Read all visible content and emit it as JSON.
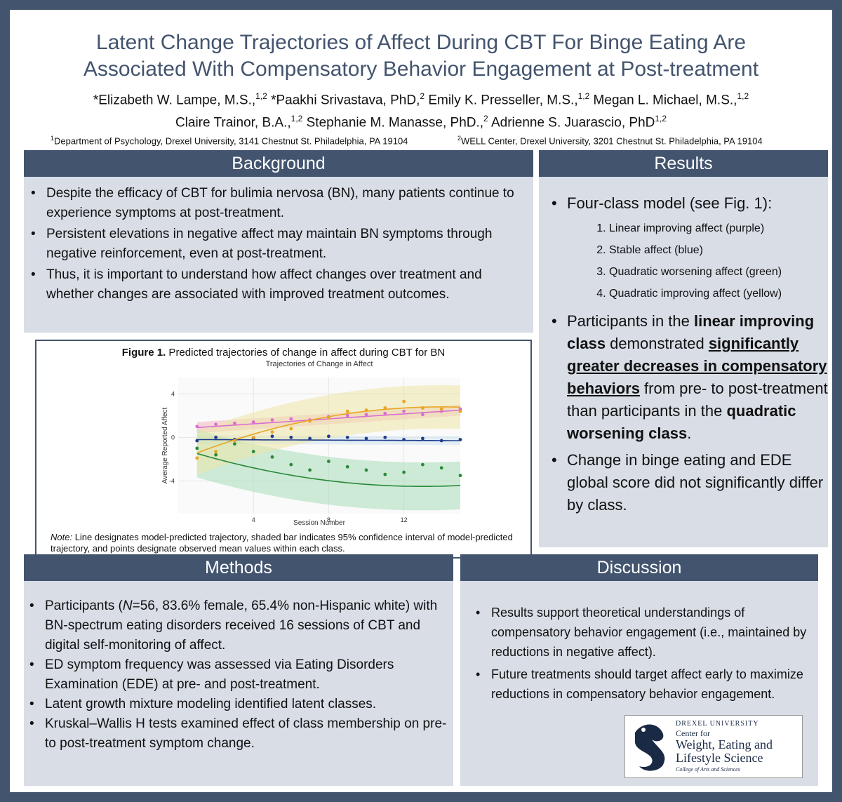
{
  "title": {
    "line1": "Latent Change Trajectories of Affect During CBT For Binge Eating Are",
    "line2": "Associated With Compensatory Behavior Engagement at Post-treatment"
  },
  "authors": {
    "line1": "*Elizabeth W. Lampe, M.S.,1,2 *Paakhi Srivastava, PhD,2 Emily K. Presseller, M.S.,1,2 Megan L. Michael, M.S.,1,2",
    "line2": "Claire Trainor, B.A.,1,2 Stephanie M. Manasse, PhD.,2 Adrienne S. Juarascio, PhD1,2"
  },
  "affiliations": {
    "a1": "Department of Psychology, Drexel University, 3141 Chestnut St. Philadelphia, PA 19104",
    "a2": "WELL Center, Drexel University, 3201 Chestnut St. Philadelphia, PA 19104"
  },
  "background": {
    "heading": "Background",
    "items": [
      "Despite the efficacy of CBT for bulimia nervosa (BN), many patients continue to experience symptoms at post-treatment.",
      "Persistent elevations in negative affect may maintain BN symptoms through negative reinforcement, even at post-treatment.",
      "Thus, it is important to understand how affect changes over treatment and whether changes are associated with improved treatment outcomes."
    ]
  },
  "results": {
    "heading": "Results",
    "intro": "Four-class model (see Fig. 1):",
    "classes": [
      "Linear improving affect (purple)",
      "Stable affect (blue)",
      "Quadratic worsening affect (green)",
      "Quadratic improving affect (yellow)"
    ],
    "p2_a": "Participants in the ",
    "p2_b": "linear improving class",
    "p2_c": " demonstrated ",
    "p2_d": "significantly",
    "p2_e": "greater decreases in compensatory behaviors",
    "p2_f": " from pre- to post-treatment than participants in the ",
    "p2_g": "quadratic worsening class",
    "p2_h": ".",
    "p3": "Change in binge eating and EDE global score did not significantly differ by class."
  },
  "figure": {
    "caption_bold": "Figure 1.",
    "caption": " Predicted trajectories of change in affect during CBT for BN",
    "note_label": "Note:",
    "note": " Line designates model-predicted trajectory, shaded bar indicates 95% confidence interval of model-predicted trajectory, and points designate observed mean values within each class."
  },
  "methods": {
    "heading": "Methods",
    "item1_a": "Participants (",
    "item1_n": "N",
    "item1_b": "=56, 83.6% female, 65.4% non-Hispanic white) with BN-spectrum eating disorders received 16 sessions of CBT and digital self-monitoring of affect.",
    "items": [
      "ED symptom frequency was assessed via Eating Disorders Examination (EDE) at pre- and post-treatment.",
      "Latent growth mixture modeling identified latent classes.",
      "Kruskal–Wallis H tests examined effect of class membership on pre- to post-treatment symptom change."
    ]
  },
  "discussion": {
    "heading": "Discussion",
    "items": [
      "Results support theoretical understandings of compensatory behavior engagement (i.e., maintained by reductions in negative affect).",
      "Future treatments should target affect early to maximize reductions in compensatory behavior engagement."
    ]
  },
  "logo": {
    "university": "DREXEL UNIVERSITY",
    "center": "Center for",
    "name1": "Weight, Eating and",
    "name2": "Lifestyle Science",
    "college": "College of Arts and Sciences"
  },
  "chart_data": {
    "type": "line",
    "title": "Trajectories of Change in Affect",
    "xlabel": "Session Number",
    "ylabel": "Average Reported Affect",
    "xlim": [
      0,
      15
    ],
    "ylim": [
      -7,
      5.5
    ],
    "xticks": [
      4,
      8,
      12
    ],
    "yticks": [
      4,
      0,
      -4
    ],
    "grid": true,
    "x": [
      1,
      2,
      3,
      4,
      5,
      6,
      7,
      8,
      9,
      10,
      11,
      12,
      13,
      14,
      15
    ],
    "series": [
      {
        "name": "Linear improving",
        "color": "#d96fd0",
        "band": "#f3b6c0",
        "line_start": 0.9,
        "line_end": 2.5,
        "band_half": 0.5,
        "points": [
          1.0,
          1.2,
          1.3,
          1.4,
          1.6,
          1.7,
          1.6,
          1.9,
          2.0,
          2.1,
          2.2,
          2.4,
          2.1,
          2.4,
          2.6
        ]
      },
      {
        "name": "Stable",
        "color": "#1f3c8c",
        "band": "#cde3ef",
        "line_start": -0.2,
        "line_end": -0.3,
        "band_half": 0.4,
        "points": [
          -0.3,
          0.0,
          -0.2,
          -0.1,
          0.1,
          0.0,
          -0.1,
          0.1,
          0.0,
          -0.1,
          0.0,
          -0.2,
          -0.1,
          -0.3,
          -0.2
        ]
      },
      {
        "name": "Quadratic worsening",
        "color": "#2a8a3a",
        "band": "#a8dcb8",
        "vertex_x": 13,
        "a": 0.021,
        "k": -4.5,
        "band_half": 2.2,
        "points": [
          -1.0,
          -1.6,
          -0.6,
          -1.3,
          -1.8,
          -2.5,
          -3.0,
          -2.2,
          -2.7,
          -3.0,
          -3.4,
          -3.2,
          -2.5,
          -2.8,
          -3.5
        ]
      },
      {
        "name": "Quadratic improving",
        "color": "#e9a623",
        "band": "#ece6a8",
        "vertex_x": 14,
        "a": -0.025,
        "k": 2.8,
        "band_half": 2.0,
        "points": [
          -1.9,
          -1.3,
          -0.3,
          0.0,
          0.5,
          0.8,
          1.5,
          1.8,
          2.4,
          2.5,
          2.7,
          3.3,
          2.7,
          2.6,
          2.4
        ]
      }
    ]
  }
}
